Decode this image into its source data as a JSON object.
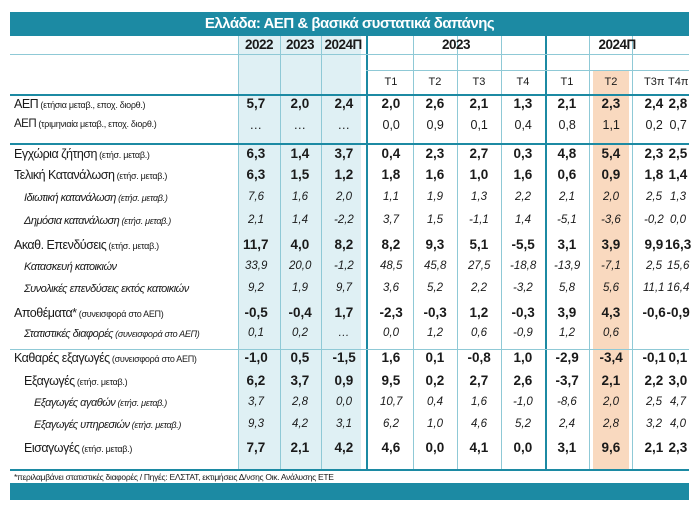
{
  "title": "Ελλάδα: ΑΕΠ & βασικά συστατικά δαπάνης",
  "annual_headers": [
    "2022",
    "2023",
    "2024Π"
  ],
  "quarter_groups": [
    "2023",
    "2024Π"
  ],
  "quarter_headers": [
    "Τ1",
    "Τ2",
    "Τ3",
    "Τ4",
    "Τ1",
    "Τ2",
    "Τ3π",
    "Τ4π"
  ],
  "rows": [
    {
      "label": "ΑΕΠ",
      "suffix": "(ετήσια μεταβ., εποχ. διορθ.)",
      "style": "bold",
      "indent": 0,
      "values": [
        "5,7",
        "2,0",
        "2,4",
        "2,0",
        "2,6",
        "2,1",
        "1,3",
        "2,1",
        "2,3",
        "2,4",
        "2,8"
      ]
    },
    {
      "label": "ΑΕΠ",
      "suffix": "(τριμηνιαία μεταβ., εποχ. διορθ.)",
      "style": "plain",
      "indent": 0,
      "values": [
        "…",
        "…",
        "…",
        "0,0",
        "0,9",
        "0,1",
        "0,4",
        "0,8",
        "1,1",
        "0,2",
        "0,7"
      ]
    },
    {
      "label": "Εγχώρια ζήτηση",
      "suffix": "(ετήσ. μεταβ.)",
      "style": "bold",
      "indent": 0,
      "values": [
        "6,3",
        "1,4",
        "3,7",
        "0,4",
        "2,3",
        "2,7",
        "0,3",
        "4,8",
        "5,4",
        "2,3",
        "2,5"
      ]
    },
    {
      "label": "Τελική Κατανάλωση",
      "suffix": "(ετήσ. μεταβ.)",
      "style": "bold",
      "indent": 0,
      "values": [
        "6,3",
        "1,5",
        "1,2",
        "1,8",
        "1,6",
        "1,0",
        "1,6",
        "0,6",
        "0,9",
        "1,8",
        "1,4"
      ]
    },
    {
      "label": "Ιδιωτική κατανάλωση",
      "suffix": "(ετήσ. μεταβ.)",
      "style": "italic",
      "indent": 1,
      "values": [
        "7,6",
        "1,6",
        "2,0",
        "1,1",
        "1,9",
        "1,3",
        "2,2",
        "2,1",
        "2,0",
        "2,5",
        "1,3"
      ]
    },
    {
      "label": "Δημόσια κατανάλωση",
      "suffix": "(ετήσ. μεταβ.)",
      "style": "italic",
      "indent": 1,
      "values": [
        "2,1",
        "1,4",
        "-2,2",
        "3,7",
        "1,5",
        "-1,1",
        "1,4",
        "-5,1",
        "-3,6",
        "-0,2",
        "0,0"
      ]
    },
    {
      "label": "Ακαθ. Επενδύσεις",
      "suffix": "(ετήσ. μεταβ.)",
      "style": "bold",
      "indent": 0,
      "values": [
        "11,7",
        "4,0",
        "8,2",
        "8,2",
        "9,3",
        "5,1",
        "-5,5",
        "3,1",
        "3,9",
        "9,9",
        "16,3"
      ]
    },
    {
      "label": "Κατασκευή κατοικιών",
      "suffix": "",
      "style": "italic",
      "indent": 1,
      "values": [
        "33,9",
        "20,0",
        "-1,2",
        "48,5",
        "45,8",
        "27,5",
        "-18,8",
        "-13,9",
        "-7,1",
        "2,5",
        "15,6"
      ]
    },
    {
      "label": "Συνολικές επενδύσεις εκτός κατοικιών",
      "suffix": "",
      "style": "italic",
      "indent": 1,
      "values": [
        "9,2",
        "1,9",
        "9,7",
        "3,6",
        "5,2",
        "2,2",
        "-3,2",
        "5,8",
        "5,6",
        "11,1",
        "16,4"
      ]
    },
    {
      "label": "Αποθέματα*",
      "suffix": "(συνεισφορά στο ΑΕΠ)",
      "style": "bold",
      "indent": 0,
      "values": [
        "-0,5",
        "-0,4",
        "1,7",
        "-2,3",
        "-0,3",
        "1,2",
        "-0,3",
        "3,9",
        "4,3",
        "-0,6",
        "-0,9"
      ]
    },
    {
      "label": "Στατιστικές διαφορές",
      "suffix": "(συνεισφορά στο ΑΕΠ)",
      "style": "italic",
      "indent": 1,
      "values": [
        "0,1",
        "0,2",
        "…",
        "0,0",
        "1,2",
        "0,6",
        "-0,9",
        "1,2",
        "0,6",
        "",
        ""
      ]
    },
    {
      "label": "Καθαρές εξαγωγές",
      "suffix": "(συνεισφορά στο ΑΕΠ)",
      "style": "bold",
      "indent": 0,
      "values": [
        "-1,0",
        "0,5",
        "-1,5",
        "1,6",
        "0,1",
        "-0,8",
        "1,0",
        "-2,9",
        "-3,4",
        "-0,1",
        "0,1"
      ]
    },
    {
      "label": "Εξαγωγές",
      "suffix": "(ετήσ. μεταβ.)",
      "style": "bold",
      "indent": 1,
      "values": [
        "6,2",
        "3,7",
        "0,9",
        "9,5",
        "0,2",
        "2,7",
        "2,6",
        "-3,7",
        "2,1",
        "2,2",
        "3,0"
      ]
    },
    {
      "label": "Εξαγωγές αγαθών",
      "suffix": "(ετήσ. μεταβ.)",
      "style": "italic",
      "indent": 2,
      "values": [
        "3,7",
        "2,8",
        "0,0",
        "10,7",
        "0,4",
        "1,6",
        "-1,0",
        "-8,6",
        "2,0",
        "2,5",
        "4,7"
      ]
    },
    {
      "label": "Εξαγωγές υπηρεσιών",
      "suffix": "(ετήσ. μεταβ.)",
      "style": "italic",
      "indent": 2,
      "values": [
        "9,3",
        "4,2",
        "3,1",
        "6,2",
        "1,0",
        "4,6",
        "5,2",
        "2,4",
        "2,8",
        "3,2",
        "4,0"
      ]
    },
    {
      "label": "Εισαγωγές",
      "suffix": "(ετήσ. μεταβ.)",
      "style": "bold",
      "indent": 1,
      "values": [
        "7,7",
        "2,1",
        "4,2",
        "4,6",
        "0,0",
        "4,1",
        "0,0",
        "3,1",
        "9,6",
        "2,1",
        "2,3"
      ]
    }
  ],
  "footnote": "*περιλαμβάνει στατιστικές διαφορές / Πηγές: ΕΛΣΤΑΤ, εκτιμήσεις Δ/νσης Οικ. Ανάλυσης ΕΤΕ",
  "colors": {
    "header": "#1c8aa3",
    "annual_bg": "#dff0f4",
    "highlight_col": "#f9d9bf",
    "rule": "#1c8aa3",
    "grid": "#8fc9d6"
  }
}
